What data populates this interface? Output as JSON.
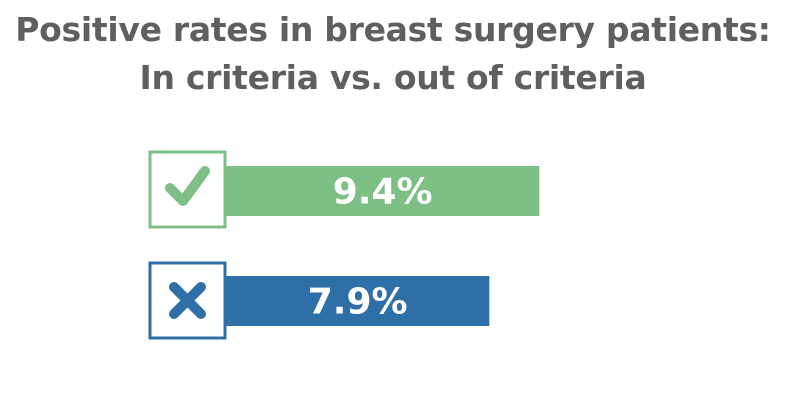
{
  "chart_data": {
    "type": "bar",
    "orientation": "horizontal",
    "title": "Positive rates in breast surgery patients:",
    "subtitle": "In criteria vs. out of criteria",
    "categories": [
      "check-icon",
      "x-icon"
    ],
    "values": [
      9.4,
      7.9
    ],
    "value_labels": [
      "9.4%",
      "7.9%"
    ],
    "unit": "%",
    "colors": [
      "#7dbf85",
      "#2f6fa7"
    ],
    "xlim": [
      0,
      12.3
    ],
    "grid": false,
    "legend": "none"
  }
}
